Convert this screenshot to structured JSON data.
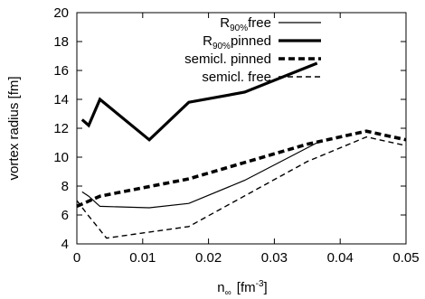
{
  "chart_data": {
    "type": "line",
    "xlabel": {
      "base": "n",
      "sub": "∞",
      "unit_pre": "[fm",
      "unit_sup": "-3",
      "unit_post": "]"
    },
    "ylabel": "vortex radius [fm]",
    "xlim": [
      0,
      0.05
    ],
    "ylim": [
      4,
      20
    ],
    "xticks": [
      "0",
      "0.01",
      "0.02",
      "0.03",
      "0.04",
      "0.05"
    ],
    "yticks": [
      "4",
      "6",
      "8",
      "10",
      "12",
      "14",
      "16",
      "18",
      "20"
    ],
    "legend_position": "top-right",
    "series": [
      {
        "name": "R90%free",
        "legend_main": "R",
        "legend_sub": "90%",
        "legend_rest": "free",
        "style": "thin-solid",
        "color": "#000000",
        "x": [
          0.0008,
          0.0018,
          0.0035,
          0.011,
          0.017,
          0.0255,
          0.0365
        ],
        "y": [
          7.6,
          7.3,
          6.6,
          6.5,
          6.8,
          8.4,
          11.0
        ]
      },
      {
        "name": "R90%pinned",
        "legend_main": "R",
        "legend_sub": "90%",
        "legend_rest": "pinned",
        "style": "thick-solid",
        "color": "#000000",
        "x": [
          0.0008,
          0.0018,
          0.0035,
          0.011,
          0.017,
          0.0255,
          0.0365
        ],
        "y": [
          12.6,
          12.2,
          14.0,
          11.2,
          13.8,
          14.5,
          16.5
        ]
      },
      {
        "name": "semicl. pinned",
        "legend_main": "semicl. pinned",
        "style": "thick-dashed",
        "color": "#000000",
        "x": [
          0.0,
          0.0035,
          0.017,
          0.035,
          0.044,
          0.05
        ],
        "y": [
          6.6,
          7.3,
          8.5,
          10.9,
          11.8,
          11.2
        ]
      },
      {
        "name": "semicl. free",
        "legend_main": "semicl. free",
        "style": "thin-dashed",
        "color": "#000000",
        "x": [
          0.0,
          0.0015,
          0.0045,
          0.017,
          0.035,
          0.044,
          0.05
        ],
        "y": [
          7.0,
          6.1,
          4.4,
          5.2,
          9.7,
          11.4,
          10.8
        ]
      }
    ]
  }
}
